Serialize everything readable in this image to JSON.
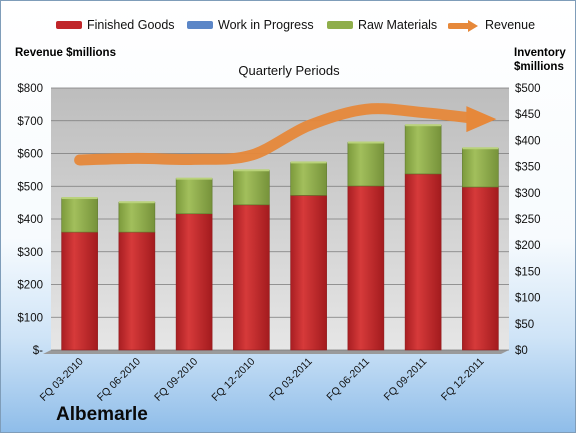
{
  "legend": {
    "items": [
      {
        "label": "Finished Goods",
        "color": "#c0262a"
      },
      {
        "label": "Work in Progress",
        "color": "#5b86c7"
      },
      {
        "label": "Raw Materials",
        "color": "#8fae4b"
      },
      {
        "label": "Revenue",
        "color": "#e6883a"
      }
    ]
  },
  "company": "Albemarle",
  "chart_data": {
    "type": "bar",
    "stacked": true,
    "title": "Quarterly Periods",
    "ylabel_left": "Revenue $millions",
    "ylabel_right": "Inventory $millions",
    "categories": [
      "FQ 03-2010",
      "FQ 06-2010",
      "FQ 09-2010",
      "FQ 12-2010",
      "FQ 03-2011",
      "FQ 06-2011",
      "FQ 09-2011",
      "FQ 12-2011"
    ],
    "series": [
      {
        "name": "Finished Goods",
        "axis": "right",
        "values": [
          225,
          225,
          260,
          277,
          295,
          313,
          336,
          311
        ],
        "color": "#c0262a"
      },
      {
        "name": "Work in Progress",
        "axis": "right",
        "values": [
          0,
          0,
          0,
          0,
          0,
          0,
          0,
          0
        ],
        "color": "#5b86c7"
      },
      {
        "name": "Raw Materials",
        "axis": "right",
        "values": [
          65,
          57,
          67,
          66,
          63,
          83,
          93,
          74
        ],
        "color": "#8fae4b"
      },
      {
        "name": "Revenue",
        "axis": "left",
        "type": "line",
        "values": [
          580,
          585,
          582,
          595,
          685,
          735,
          725,
          705
        ],
        "color": "#e6883a"
      }
    ],
    "left_axis": {
      "ylim": [
        0,
        800
      ],
      "ticks": [
        "$-",
        "$100",
        "$200",
        "$300",
        "$400",
        "$500",
        "$600",
        "$700",
        "$800"
      ]
    },
    "right_axis": {
      "ylim": [
        0,
        500
      ],
      "ticks": [
        "$0",
        "$50",
        "$100",
        "$150",
        "$200",
        "$250",
        "$300",
        "$350",
        "$400",
        "$450",
        "$500"
      ]
    },
    "grid": true,
    "legend_position": "top"
  }
}
